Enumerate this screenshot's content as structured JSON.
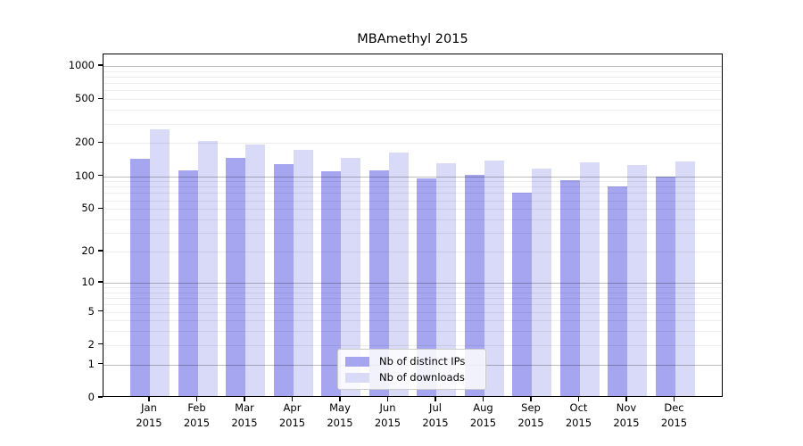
{
  "chart_data": {
    "type": "bar",
    "title": "MBAmethyl 2015",
    "categories": [
      "Jan",
      "Feb",
      "Mar",
      "Apr",
      "May",
      "Jun",
      "Jul",
      "Aug",
      "Sep",
      "Oct",
      "Nov",
      "Dec"
    ],
    "year_label": "2015",
    "series": [
      {
        "name": "Nb of distinct IPs",
        "color": "#a5a5f0",
        "values": [
          140,
          108,
          142,
          124,
          106,
          108,
          92,
          100,
          68,
          88,
          77,
          95
        ]
      },
      {
        "name": "Nb of downloads",
        "color": "#d9d9f8",
        "values": [
          255,
          200,
          186,
          168,
          141,
          157,
          127,
          134,
          114,
          129,
          122,
          131
        ]
      }
    ],
    "y_scale": "log1p",
    "y_ticks": [
      0,
      1,
      2,
      5,
      10,
      20,
      50,
      100,
      200,
      500,
      1000
    ],
    "ylim": [
      0,
      1280
    ],
    "xlabel": "",
    "ylabel": "",
    "grid": true,
    "legend_position": "lower center"
  }
}
